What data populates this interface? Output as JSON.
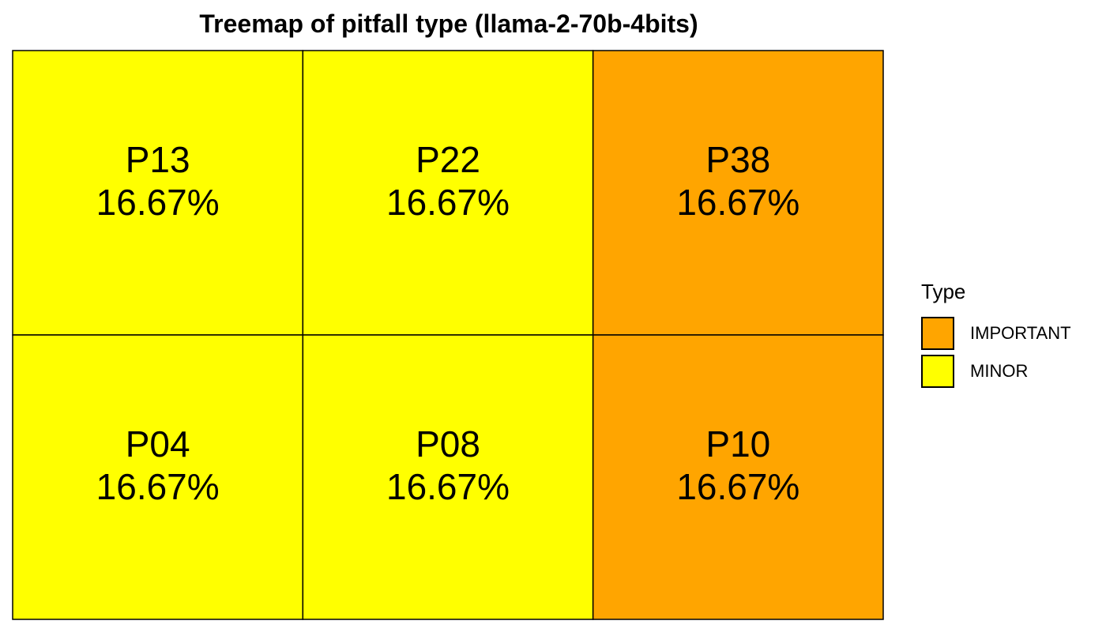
{
  "chart_data": {
    "type": "treemap",
    "title": "Treemap of pitfall type (llama-2-70b-4bits)",
    "legend": {
      "title": "Type",
      "placement": "right",
      "entries": [
        {
          "label": "IMPORTANT",
          "color": "#FFA500"
        },
        {
          "label": "MINOR",
          "color": "#FFFF00"
        }
      ]
    },
    "tiles": [
      {
        "label": "P13",
        "value_text": "16.67%",
        "value": 16.67,
        "type": "MINOR"
      },
      {
        "label": "P22",
        "value_text": "16.67%",
        "value": 16.67,
        "type": "MINOR"
      },
      {
        "label": "P38",
        "value_text": "16.67%",
        "value": 16.67,
        "type": "IMPORTANT"
      },
      {
        "label": "P04",
        "value_text": "16.67%",
        "value": 16.67,
        "type": "MINOR"
      },
      {
        "label": "P08",
        "value_text": "16.67%",
        "value": 16.67,
        "type": "MINOR"
      },
      {
        "label": "P10",
        "value_text": "16.67%",
        "value": 16.67,
        "type": "IMPORTANT"
      }
    ]
  }
}
